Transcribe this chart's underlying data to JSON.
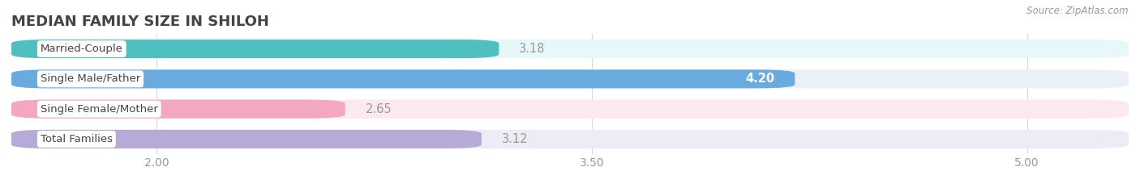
{
  "title": "MEDIAN FAMILY SIZE IN SHILOH",
  "source": "Source: ZipAtlas.com",
  "categories": [
    "Married-Couple",
    "Single Male/Father",
    "Single Female/Mother",
    "Total Families"
  ],
  "values": [
    3.18,
    4.2,
    2.65,
    3.12
  ],
  "bar_colors": [
    "#50bfbf",
    "#6aabdf",
    "#f4a8c0",
    "#b8aad8"
  ],
  "bar_bg_colors": [
    "#e8f7f7",
    "#eaf0f8",
    "#fce8f0",
    "#eeebf6"
  ],
  "xlim_left": 1.5,
  "xlim_right": 5.35,
  "xticks": [
    2.0,
    3.5,
    5.0
  ],
  "xtick_labels": [
    "2.00",
    "3.50",
    "5.00"
  ],
  "value_label_color_inside": "#ffffff",
  "value_label_color_outside": "#999999",
  "title_fontsize": 13,
  "tick_fontsize": 10,
  "bar_label_fontsize": 10.5,
  "category_fontsize": 9.5,
  "background_color": "#ffffff",
  "label_bg_color": "#ffffff",
  "grid_color": "#d8d8d8"
}
